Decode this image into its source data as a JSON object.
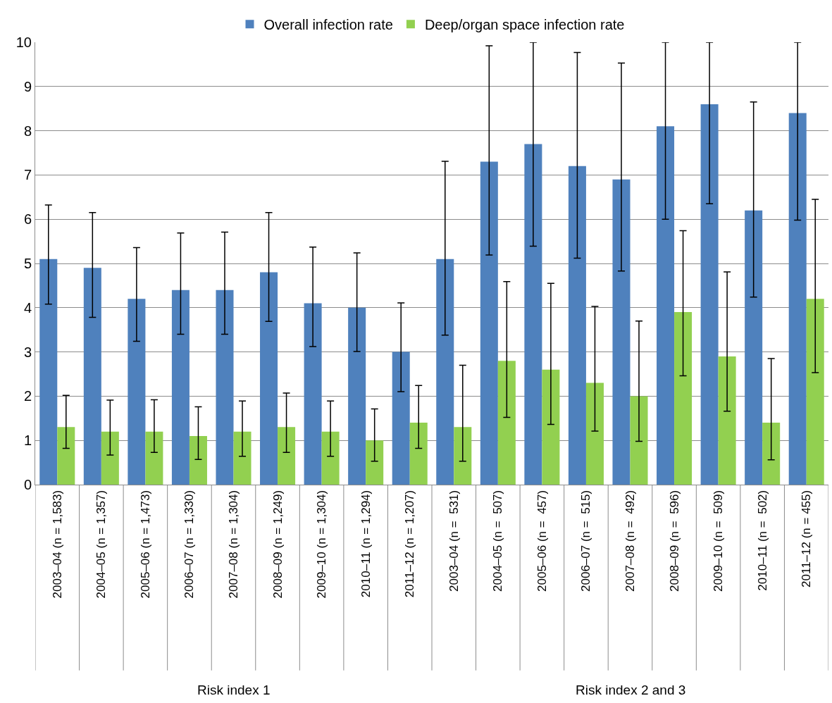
{
  "chart_data": {
    "type": "bar",
    "ylim": [
      0,
      10
    ],
    "yticks": [
      0,
      1,
      2,
      3,
      4,
      5,
      6,
      7,
      8,
      9,
      10
    ],
    "grid": "y",
    "legend": "top",
    "categories": [
      "2003–04 (n = 1,583)",
      "2004–05 (n = 1,357)",
      "2005–06 (n = 1,473)",
      "2006–07 (n = 1,330)",
      "2007–08 (n = 1,304)",
      "2008–09 (n = 1,249)",
      "2009–10 (n = 1,304)",
      "2010–11 (n = 1,294)",
      "2011–12 (n = 1,207)",
      "2003–04 (n =  531)",
      "2004–05 (n =  507)",
      "2005–06 (n =  457)",
      "2006–07 (n =  515)",
      "2007–08 (n =  492)",
      "2008–09 (n =  596)",
      "2009–10 (n =  509)",
      "2010–11 (n =  502)",
      "2011–12 (n = 455)"
    ],
    "annotations": [
      "Risk index 1",
      "Risk index 2 and 3"
    ],
    "series": [
      {
        "name": "Overall infection rate",
        "color": "#4f81bd",
        "values": [
          5.1,
          4.9,
          4.2,
          4.4,
          4.4,
          4.8,
          4.1,
          4.0,
          3.0,
          5.1,
          7.3,
          7.7,
          7.2,
          6.9,
          8.1,
          8.6,
          6.2,
          8.4
        ],
        "errors": [
          [
            4.08,
            6.32
          ],
          [
            3.78,
            6.15
          ],
          [
            3.24,
            5.36
          ],
          [
            3.4,
            5.69
          ],
          [
            3.4,
            5.71
          ],
          [
            3.69,
            6.15
          ],
          [
            3.12,
            5.37
          ],
          [
            3.01,
            5.24
          ],
          [
            2.1,
            4.11
          ],
          [
            3.38,
            7.31
          ],
          [
            5.19,
            9.92
          ],
          [
            5.39,
            10
          ],
          [
            5.12,
            9.77
          ],
          [
            4.83,
            9.53
          ],
          [
            6.0,
            10
          ],
          [
            6.35,
            10
          ],
          [
            4.24,
            8.65
          ],
          [
            5.98,
            10
          ]
        ]
      },
      {
        "name": "Deep/organ space infection rate",
        "color": "#92d050",
        "values": [
          1.3,
          1.2,
          1.2,
          1.1,
          1.2,
          1.3,
          1.2,
          1.0,
          1.4,
          1.3,
          2.8,
          2.6,
          2.3,
          2.0,
          3.9,
          2.9,
          1.4,
          4.2
        ],
        "errors": [
          [
            0.82,
            2.02
          ],
          [
            0.67,
            1.91
          ],
          [
            0.73,
            1.92
          ],
          [
            0.57,
            1.76
          ],
          [
            0.64,
            1.89
          ],
          [
            0.73,
            2.07
          ],
          [
            0.64,
            1.89
          ],
          [
            0.53,
            1.71
          ],
          [
            0.82,
            2.24
          ],
          [
            0.53,
            2.7
          ],
          [
            1.52,
            4.59
          ],
          [
            1.36,
            4.55
          ],
          [
            1.21,
            4.03
          ],
          [
            0.98,
            3.7
          ],
          [
            2.46,
            5.74
          ],
          [
            1.66,
            4.81
          ],
          [
            0.56,
            2.85
          ],
          [
            2.53,
            6.45
          ]
        ]
      }
    ]
  }
}
